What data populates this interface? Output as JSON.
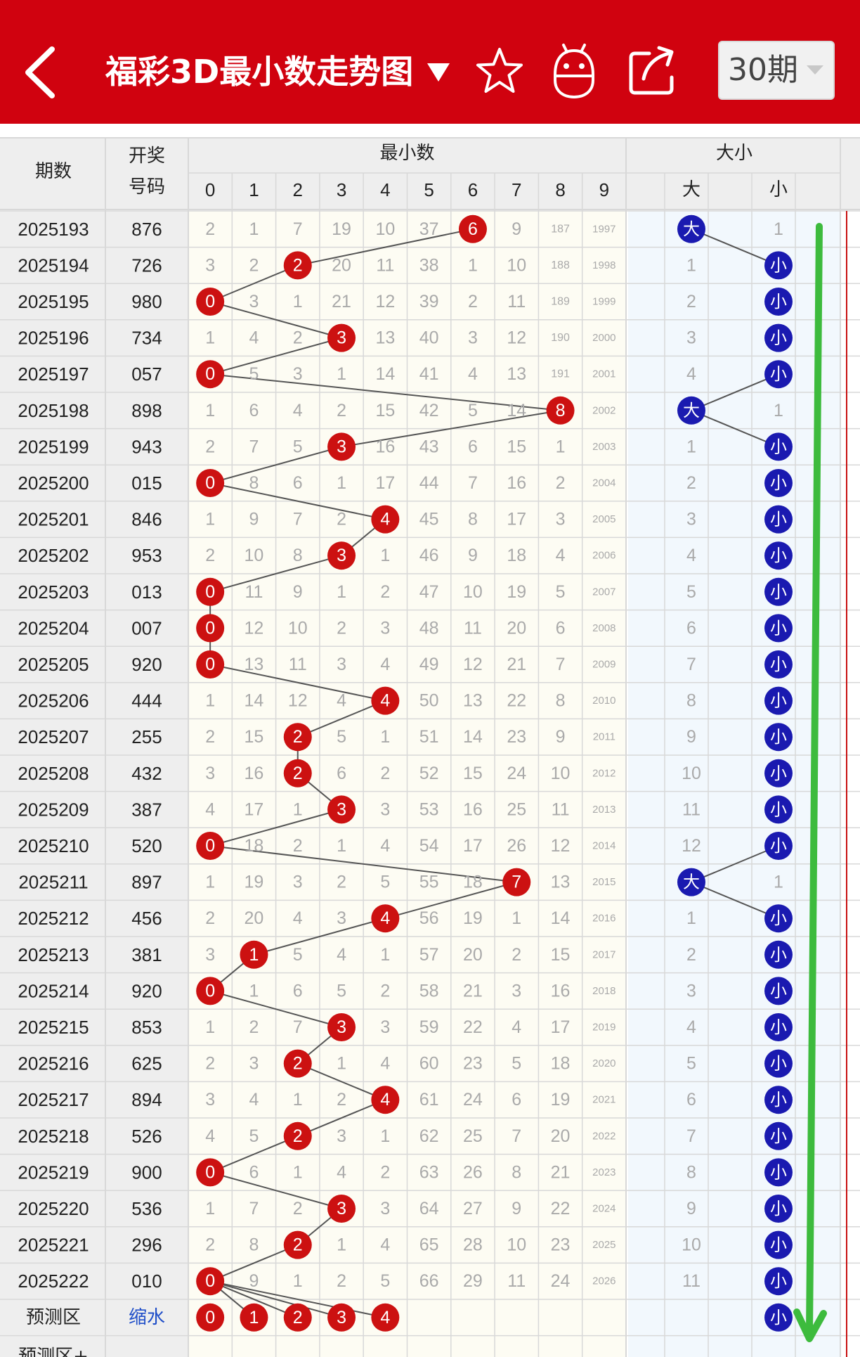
{
  "topbar": {
    "title": "福彩3D最小数走势图",
    "period_select": "30期",
    "icons": [
      "back-arrow-icon",
      "dropdown-caret-icon",
      "star-icon",
      "robot-icon",
      "share-icon",
      "chevron-down-icon"
    ]
  },
  "table": {
    "header": {
      "period": "期数",
      "draw_line1": "开奖",
      "draw_line2": "号码",
      "min_group": "最小数",
      "size_group": "大小",
      "digits": [
        "0",
        "1",
        "2",
        "3",
        "4",
        "5",
        "6",
        "7",
        "8",
        "9"
      ],
      "big": "大",
      "small": "小"
    },
    "rows": [
      {
        "period": "2025193",
        "draw": "876",
        "cells": [
          "2",
          "1",
          "7",
          "19",
          "10",
          "37",
          "6",
          "9",
          "187",
          "1997"
        ],
        "hit": 6,
        "size": "big",
        "big": "大",
        "small": "1"
      },
      {
        "period": "2025194",
        "draw": "726",
        "cells": [
          "3",
          "2",
          "2",
          "20",
          "11",
          "38",
          "1",
          "10",
          "188",
          "1998"
        ],
        "hit": 2,
        "size": "small",
        "big": "1",
        "small": "小"
      },
      {
        "period": "2025195",
        "draw": "980",
        "cells": [
          "0",
          "3",
          "1",
          "21",
          "12",
          "39",
          "2",
          "11",
          "189",
          "1999"
        ],
        "hit": 0,
        "size": "small",
        "big": "2",
        "small": "小"
      },
      {
        "period": "2025196",
        "draw": "734",
        "cells": [
          "1",
          "4",
          "2",
          "3",
          "13",
          "40",
          "3",
          "12",
          "190",
          "2000"
        ],
        "hit": 3,
        "size": "small",
        "big": "3",
        "small": "小"
      },
      {
        "period": "2025197",
        "draw": "057",
        "cells": [
          "0",
          "5",
          "3",
          "1",
          "14",
          "41",
          "4",
          "13",
          "191",
          "2001"
        ],
        "hit": 0,
        "size": "small",
        "big": "4",
        "small": "小"
      },
      {
        "period": "2025198",
        "draw": "898",
        "cells": [
          "1",
          "6",
          "4",
          "2",
          "15",
          "42",
          "5",
          "14",
          "8",
          "2002"
        ],
        "hit": 8,
        "size": "big",
        "big": "大",
        "small": "1"
      },
      {
        "period": "2025199",
        "draw": "943",
        "cells": [
          "2",
          "7",
          "5",
          "3",
          "16",
          "43",
          "6",
          "15",
          "1",
          "2003"
        ],
        "hit": 3,
        "size": "small",
        "big": "1",
        "small": "小"
      },
      {
        "period": "2025200",
        "draw": "015",
        "cells": [
          "0",
          "8",
          "6",
          "1",
          "17",
          "44",
          "7",
          "16",
          "2",
          "2004"
        ],
        "hit": 0,
        "size": "small",
        "big": "2",
        "small": "小"
      },
      {
        "period": "2025201",
        "draw": "846",
        "cells": [
          "1",
          "9",
          "7",
          "2",
          "4",
          "45",
          "8",
          "17",
          "3",
          "2005"
        ],
        "hit": 4,
        "size": "small",
        "big": "3",
        "small": "小"
      },
      {
        "period": "2025202",
        "draw": "953",
        "cells": [
          "2",
          "10",
          "8",
          "3",
          "1",
          "46",
          "9",
          "18",
          "4",
          "2006"
        ],
        "hit": 3,
        "size": "small",
        "big": "4",
        "small": "小"
      },
      {
        "period": "2025203",
        "draw": "013",
        "cells": [
          "0",
          "11",
          "9",
          "1",
          "2",
          "47",
          "10",
          "19",
          "5",
          "2007"
        ],
        "hit": 0,
        "size": "small",
        "big": "5",
        "small": "小"
      },
      {
        "period": "2025204",
        "draw": "007",
        "cells": [
          "0",
          "12",
          "10",
          "2",
          "3",
          "48",
          "11",
          "20",
          "6",
          "2008"
        ],
        "hit": 0,
        "size": "small",
        "big": "6",
        "small": "小"
      },
      {
        "period": "2025205",
        "draw": "920",
        "cells": [
          "0",
          "13",
          "11",
          "3",
          "4",
          "49",
          "12",
          "21",
          "7",
          "2009"
        ],
        "hit": 0,
        "size": "small",
        "big": "7",
        "small": "小"
      },
      {
        "period": "2025206",
        "draw": "444",
        "cells": [
          "1",
          "14",
          "12",
          "4",
          "4",
          "50",
          "13",
          "22",
          "8",
          "2010"
        ],
        "hit": 4,
        "size": "small",
        "big": "8",
        "small": "小"
      },
      {
        "period": "2025207",
        "draw": "255",
        "cells": [
          "2",
          "15",
          "2",
          "5",
          "1",
          "51",
          "14",
          "23",
          "9",
          "2011"
        ],
        "hit": 2,
        "size": "small",
        "big": "9",
        "small": "小"
      },
      {
        "period": "2025208",
        "draw": "432",
        "cells": [
          "3",
          "16",
          "2",
          "6",
          "2",
          "52",
          "15",
          "24",
          "10",
          "2012"
        ],
        "hit": 2,
        "size": "small",
        "big": "10",
        "small": "小"
      },
      {
        "period": "2025209",
        "draw": "387",
        "cells": [
          "4",
          "17",
          "1",
          "3",
          "3",
          "53",
          "16",
          "25",
          "11",
          "2013"
        ],
        "hit": 3,
        "size": "small",
        "big": "11",
        "small": "小"
      },
      {
        "period": "2025210",
        "draw": "520",
        "cells": [
          "0",
          "18",
          "2",
          "1",
          "4",
          "54",
          "17",
          "26",
          "12",
          "2014"
        ],
        "hit": 0,
        "size": "small",
        "big": "12",
        "small": "小"
      },
      {
        "period": "2025211",
        "draw": "897",
        "cells": [
          "1",
          "19",
          "3",
          "2",
          "5",
          "55",
          "18",
          "7",
          "13",
          "2015"
        ],
        "hit": 7,
        "size": "big",
        "big": "大",
        "small": "1"
      },
      {
        "period": "2025212",
        "draw": "456",
        "cells": [
          "2",
          "20",
          "4",
          "3",
          "4",
          "56",
          "19",
          "1",
          "14",
          "2016"
        ],
        "hit": 4,
        "size": "small",
        "big": "1",
        "small": "小"
      },
      {
        "period": "2025213",
        "draw": "381",
        "cells": [
          "3",
          "1",
          "5",
          "4",
          "1",
          "57",
          "20",
          "2",
          "15",
          "2017"
        ],
        "hit": 1,
        "size": "small",
        "big": "2",
        "small": "小"
      },
      {
        "period": "2025214",
        "draw": "920",
        "cells": [
          "0",
          "1",
          "6",
          "5",
          "2",
          "58",
          "21",
          "3",
          "16",
          "2018"
        ],
        "hit": 0,
        "size": "small",
        "big": "3",
        "small": "小"
      },
      {
        "period": "2025215",
        "draw": "853",
        "cells": [
          "1",
          "2",
          "7",
          "3",
          "3",
          "59",
          "22",
          "4",
          "17",
          "2019"
        ],
        "hit": 3,
        "size": "small",
        "big": "4",
        "small": "小"
      },
      {
        "period": "2025216",
        "draw": "625",
        "cells": [
          "2",
          "3",
          "2",
          "1",
          "4",
          "60",
          "23",
          "5",
          "18",
          "2020"
        ],
        "hit": 2,
        "size": "small",
        "big": "5",
        "small": "小"
      },
      {
        "period": "2025217",
        "draw": "894",
        "cells": [
          "3",
          "4",
          "1",
          "2",
          "4",
          "61",
          "24",
          "6",
          "19",
          "2021"
        ],
        "hit": 4,
        "size": "small",
        "big": "6",
        "small": "小"
      },
      {
        "period": "2025218",
        "draw": "526",
        "cells": [
          "4",
          "5",
          "2",
          "3",
          "1",
          "62",
          "25",
          "7",
          "20",
          "2022"
        ],
        "hit": 2,
        "size": "small",
        "big": "7",
        "small": "小"
      },
      {
        "period": "2025219",
        "draw": "900",
        "cells": [
          "0",
          "6",
          "1",
          "4",
          "2",
          "63",
          "26",
          "8",
          "21",
          "2023"
        ],
        "hit": 0,
        "size": "small",
        "big": "8",
        "small": "小"
      },
      {
        "period": "2025220",
        "draw": "536",
        "cells": [
          "1",
          "7",
          "2",
          "3",
          "3",
          "64",
          "27",
          "9",
          "22",
          "2024"
        ],
        "hit": 3,
        "size": "small",
        "big": "9",
        "small": "小"
      },
      {
        "period": "2025221",
        "draw": "296",
        "cells": [
          "2",
          "8",
          "2",
          "1",
          "4",
          "65",
          "28",
          "10",
          "23",
          "2025"
        ],
        "hit": 2,
        "size": "small",
        "big": "10",
        "small": "小"
      },
      {
        "period": "2025222",
        "draw": "010",
        "cells": [
          "0",
          "9",
          "1",
          "2",
          "5",
          "66",
          "29",
          "11",
          "24",
          "2026"
        ],
        "hit": 0,
        "size": "small",
        "big": "11",
        "small": "小"
      }
    ],
    "predict": {
      "label": "预测区",
      "link": "缩水",
      "balls": [
        "0",
        "1",
        "2",
        "3",
        "4"
      ],
      "size": "小"
    },
    "predict_plus": {
      "label": "预测区+"
    }
  },
  "colors": {
    "brand_red": "#d0020f",
    "hit_red": "#cc1111",
    "size_blue": "#1a1ab0",
    "trend_green": "#3dbb3d",
    "guide_red": "#c81010"
  }
}
